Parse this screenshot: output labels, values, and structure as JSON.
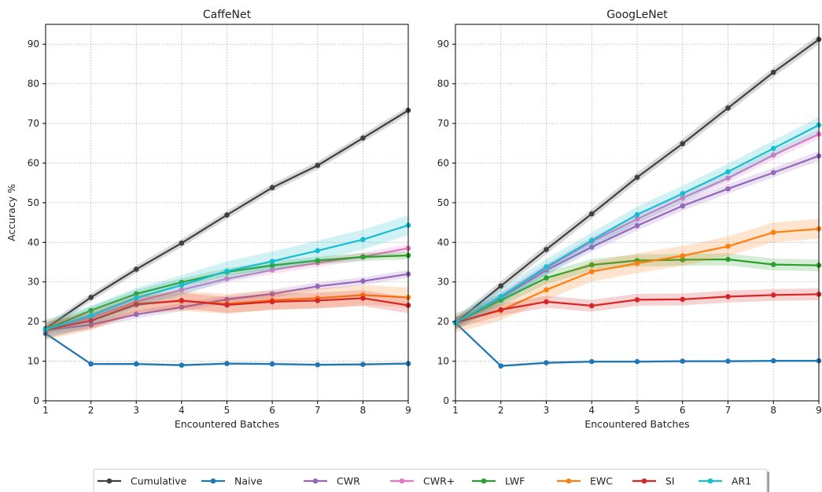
{
  "chart_data": [
    {
      "type": "line",
      "title": "CaffeNet",
      "xlabel": "Encountered Batches",
      "ylabel": "Accuracy %",
      "xlim": [
        1,
        9
      ],
      "ylim": [
        0,
        95
      ],
      "x_ticks": [
        1,
        2,
        3,
        4,
        5,
        6,
        7,
        8,
        9
      ],
      "y_ticks": [
        0,
        10,
        20,
        30,
        40,
        50,
        60,
        70,
        80,
        90
      ],
      "grid": true,
      "x": [
        1,
        2,
        3,
        4,
        5,
        6,
        7,
        8,
        9
      ],
      "series": [
        {
          "name": "Cumulative",
          "color": "#404040",
          "values": [
            18.2,
            26.1,
            33.2,
            39.8,
            46.9,
            53.8,
            59.4,
            66.3,
            73.3
          ],
          "band": 1.0
        },
        {
          "name": "Naive",
          "color": "#1f77b4",
          "values": [
            17.0,
            9.3,
            9.3,
            9.0,
            9.4,
            9.3,
            9.1,
            9.2,
            9.4
          ],
          "band": 0.3
        },
        {
          "name": "CWR",
          "color": "#9467bd",
          "values": [
            17.8,
            19.2,
            21.8,
            23.6,
            25.6,
            27.0,
            28.9,
            30.2,
            32.0
          ],
          "band": 1.0
        },
        {
          "name": "CWR+",
          "color": "#e377c2",
          "values": [
            17.8,
            21.0,
            25.0,
            28.0,
            30.8,
            33.0,
            34.8,
            36.4,
            38.5
          ],
          "band": 1.0
        },
        {
          "name": "LWF",
          "color": "#2ca02c",
          "values": [
            18.0,
            22.8,
            27.0,
            29.9,
            32.5,
            34.2,
            35.4,
            36.3,
            36.7
          ],
          "band": 1.0
        },
        {
          "name": "EWC",
          "color": "#ff7f0e",
          "values": [
            17.9,
            20.3,
            24.5,
            25.2,
            24.5,
            25.4,
            25.9,
            26.7,
            26.1
          ],
          "band": 2.5
        },
        {
          "name": "SI",
          "color": "#d62728",
          "values": [
            17.9,
            20.2,
            24.3,
            25.3,
            24.2,
            25.0,
            25.3,
            25.9,
            24.1
          ],
          "band": 2.0
        },
        {
          "name": "AR1",
          "color": "#17becf",
          "values": [
            18.0,
            21.5,
            26.0,
            29.2,
            32.7,
            35.2,
            37.9,
            40.7,
            44.3
          ],
          "band": 2.5
        }
      ]
    },
    {
      "type": "line",
      "title": "GoogLeNet",
      "xlabel": "Encountered Batches",
      "ylabel": "",
      "xlim": [
        1,
        9
      ],
      "ylim": [
        0,
        95
      ],
      "x_ticks": [
        1,
        2,
        3,
        4,
        5,
        6,
        7,
        8,
        9
      ],
      "y_ticks": [
        0,
        10,
        20,
        30,
        40,
        50,
        60,
        70,
        80,
        90
      ],
      "grid": true,
      "x": [
        1,
        2,
        3,
        4,
        5,
        6,
        7,
        8,
        9
      ],
      "series": [
        {
          "name": "Cumulative",
          "color": "#404040",
          "values": [
            19.7,
            29.0,
            38.2,
            47.2,
            56.4,
            64.9,
            73.9,
            82.9,
            91.2
          ],
          "band": 1.2
        },
        {
          "name": "Naive",
          "color": "#1f77b4",
          "values": [
            19.7,
            8.8,
            9.6,
            9.9,
            9.9,
            10.0,
            10.0,
            10.1,
            10.1
          ],
          "band": 0.3
        },
        {
          "name": "CWR",
          "color": "#9467bd",
          "values": [
            19.7,
            26.0,
            33.0,
            38.8,
            44.2,
            49.2,
            53.5,
            57.6,
            61.8
          ],
          "band": 1.2
        },
        {
          "name": "CWR+",
          "color": "#e377c2",
          "values": [
            19.7,
            26.2,
            33.5,
            40.2,
            45.9,
            51.2,
            56.2,
            62.0,
            67.3
          ],
          "band": 1.2
        },
        {
          "name": "LWF",
          "color": "#2ca02c",
          "values": [
            19.7,
            25.4,
            31.0,
            34.3,
            35.4,
            35.6,
            35.7,
            34.4,
            34.2
          ],
          "band": 1.5
        },
        {
          "name": "EWC",
          "color": "#ff7f0e",
          "values": [
            19.7,
            22.8,
            28.0,
            32.6,
            34.7,
            36.6,
            39.0,
            42.5,
            43.4
          ],
          "band": 2.5
        },
        {
          "name": "SI",
          "color": "#d62728",
          "values": [
            19.7,
            23.0,
            25.0,
            24.0,
            25.5,
            25.6,
            26.3,
            26.7,
            26.9
          ],
          "band": 1.5
        },
        {
          "name": "AR1",
          "color": "#17becf",
          "values": [
            19.7,
            26.3,
            33.8,
            40.5,
            47.0,
            52.3,
            57.8,
            63.7,
            69.6
          ],
          "band": 2.0
        }
      ]
    }
  ],
  "legend": {
    "placement": "bottom-center",
    "items": [
      "Cumulative",
      "Naive",
      "CWR",
      "CWR+",
      "LWF",
      "EWC",
      "SI",
      "AR1"
    ]
  }
}
